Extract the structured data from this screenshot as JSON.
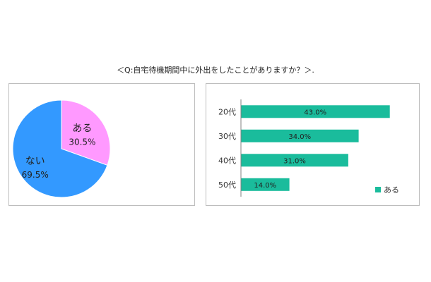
{
  "question": "＜Q:自宅待機期間中に外出をしたことがありますか？＞.",
  "chart_data": [
    {
      "type": "pie",
      "slices": [
        {
          "label": "ある",
          "value": 30.5,
          "value_label": "30.5%",
          "color": "#ff99ff"
        },
        {
          "label": "ない",
          "value": 69.5,
          "value_label": "69.5%",
          "color": "#3399ff"
        }
      ]
    },
    {
      "type": "bar",
      "orientation": "horizontal",
      "categories": [
        "20代",
        "30代",
        "40代",
        "50代"
      ],
      "series": [
        {
          "name": "ある",
          "values": [
            43.0,
            34.0,
            31.0,
            14.0
          ],
          "value_labels": [
            "43.0%",
            "34.0%",
            "31.0%",
            "14.0%"
          ],
          "color": "#1abc9c"
        }
      ],
      "xlim": [
        0,
        50
      ],
      "legend": "bottom-right"
    }
  ]
}
